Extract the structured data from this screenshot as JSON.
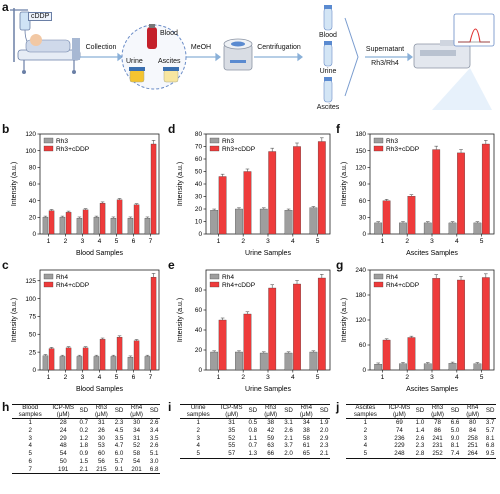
{
  "panel_labels": [
    "a",
    "b",
    "c",
    "d",
    "e",
    "f",
    "g",
    "h",
    "i",
    "j"
  ],
  "workflow": {
    "drug_tag": "cDDP",
    "collection": "Collection",
    "blood": "Blood",
    "urine": "Urine",
    "ascites": "Ascites",
    "meoh": "MeOH",
    "centrifugation": "Centrifugation",
    "tube_blood": "Blood",
    "tube_urine": "Urine",
    "tube_ascites": "Ascites",
    "supernatant": "Supernatant",
    "rh": "Rh3/Rh4"
  },
  "colors": {
    "control": "#9e9e9e",
    "treated": "#ee3b3b",
    "error": "#555555"
  },
  "chart_data": [
    {
      "id": "b",
      "type": "bar",
      "categories": [
        "1",
        "2",
        "3",
        "4",
        "5",
        "6",
        "7"
      ],
      "series": [
        {
          "name": "Rh3",
          "values": [
            20,
            20,
            19,
            20,
            19,
            19,
            19
          ]
        },
        {
          "name": "Rh3+cDDP",
          "values": [
            28,
            26,
            29,
            37,
            41,
            35,
            108
          ]
        }
      ],
      "xlabel": "Blood Samples",
      "ylabel": "Intensity (a.u.)",
      "ylim": [
        0,
        120
      ],
      "yticks": [
        0,
        20,
        40,
        60,
        80,
        100,
        120
      ],
      "legend": "top-left"
    },
    {
      "id": "c",
      "type": "bar",
      "categories": [
        "1",
        "2",
        "3",
        "4",
        "5",
        "6",
        "7"
      ],
      "series": [
        {
          "name": "Rh4",
          "values": [
            20,
            19,
            19,
            19,
            19,
            18,
            19
          ]
        },
        {
          "name": "Rh4+cDDP",
          "values": [
            30,
            31,
            31,
            43,
            46,
            41,
            130
          ]
        }
      ],
      "xlabel": "Blood Samples",
      "ylabel": "Intensity (a.u.)",
      "ylim": [
        0,
        140
      ],
      "yticks": [
        0,
        25,
        50,
        75,
        100,
        125
      ],
      "legend": "top-left"
    },
    {
      "id": "d",
      "type": "bar",
      "categories": [
        "1",
        "2",
        "3",
        "4",
        "5"
      ],
      "series": [
        {
          "name": "Rh3",
          "values": [
            19,
            20,
            20,
            19,
            21
          ]
        },
        {
          "name": "Rh3+cDDP",
          "values": [
            46,
            50,
            66,
            70,
            74
          ]
        }
      ],
      "xlabel": "Urine Samples",
      "ylabel": "Intensity (a.u.)",
      "ylim": [
        0,
        80
      ],
      "yticks": [
        0,
        10,
        20,
        30,
        40,
        50,
        60,
        70,
        80
      ],
      "legend": "top-left"
    },
    {
      "id": "e",
      "type": "bar",
      "categories": [
        "1",
        "2",
        "3",
        "4",
        "5"
      ],
      "series": [
        {
          "name": "Rh4",
          "values": [
            18,
            18,
            17,
            17,
            18
          ]
        },
        {
          "name": "Rh4+cDDP",
          "values": [
            50,
            56,
            82,
            86,
            92
          ]
        }
      ],
      "xlabel": "Urine Samples",
      "ylabel": "Intensity (a.u.)",
      "ylim": [
        0,
        100
      ],
      "yticks": [
        0,
        20,
        40,
        60,
        80
      ],
      "legend": "top-left"
    },
    {
      "id": "f",
      "type": "bar",
      "categories": [
        "1",
        "2",
        "3",
        "4",
        "5"
      ],
      "series": [
        {
          "name": "Rh3",
          "values": [
            20,
            20,
            20,
            20,
            20
          ]
        },
        {
          "name": "Rh3+cDDP",
          "values": [
            60,
            68,
            152,
            146,
            162
          ]
        }
      ],
      "xlabel": "Ascites Samples",
      "ylabel": "Intensity (a.u.)",
      "ylim": [
        0,
        180
      ],
      "yticks": [
        0,
        30,
        60,
        90,
        120,
        150,
        180
      ],
      "legend": "top-left"
    },
    {
      "id": "g",
      "type": "bar",
      "categories": [
        "1",
        "2",
        "3",
        "4",
        "5"
      ],
      "series": [
        {
          "name": "Rh4",
          "values": [
            14,
            15,
            15,
            16,
            15
          ]
        },
        {
          "name": "Rh4+cDDP",
          "values": [
            72,
            78,
            220,
            216,
            222
          ]
        }
      ],
      "xlabel": "Ascites Samples",
      "ylabel": "Intensity (a.u.)",
      "ylim": [
        0,
        240
      ],
      "yticks": [
        0,
        60,
        120,
        180,
        240
      ],
      "legend": "top-left"
    }
  ],
  "tables": {
    "h": {
      "headers": [
        "Blood samples",
        "ICP-MS (μM)",
        "SD",
        "Rh3 (μM)",
        "SD",
        "Rh4 (μM)",
        "SD"
      ],
      "rows": [
        [
          "1",
          "28",
          "0.7",
          "31",
          "2.3",
          "30",
          "2.6"
        ],
        [
          "2",
          "24",
          "0.2",
          "26",
          "4.5",
          "34",
          "3.4"
        ],
        [
          "3",
          "29",
          "1.2",
          "30",
          "3.5",
          "31",
          "3.5"
        ],
        [
          "4",
          "48",
          "1.8",
          "53",
          "4.7",
          "52",
          "2.6"
        ],
        [
          "5",
          "54",
          "0.9",
          "60",
          "6.0",
          "58",
          "5.1"
        ],
        [
          "6",
          "50",
          "1.5",
          "56",
          "5.7",
          "54",
          "3.0"
        ],
        [
          "7",
          "191",
          "2.1",
          "215",
          "9.1",
          "201",
          "6.8"
        ]
      ]
    },
    "i": {
      "headers": [
        "Urine samples",
        "ICP-MS (μM)",
        "SD",
        "Rh3 (μM)",
        "SD",
        "Rh4 (μM)",
        "SD"
      ],
      "rows": [
        [
          "1",
          "31",
          "0.5",
          "38",
          "3.1",
          "34",
          "1.9"
        ],
        [
          "2",
          "35",
          "0.8",
          "42",
          "2.6",
          "38",
          "2.0"
        ],
        [
          "3",
          "52",
          "1.1",
          "59",
          "2.1",
          "58",
          "2.9"
        ],
        [
          "4",
          "55",
          "0.7",
          "63",
          "3.7",
          "61",
          "2.3"
        ],
        [
          "5",
          "57",
          "1.3",
          "66",
          "2.0",
          "65",
          "2.1"
        ]
      ]
    },
    "j": {
      "headers": [
        "Ascites samples",
        "ICP-MS (μM)",
        "SD",
        "Rh3 (μM)",
        "SD",
        "Rh4 (μM)",
        "SD"
      ],
      "rows": [
        [
          "1",
          "69",
          "1.0",
          "78",
          "6.6",
          "80",
          "3.7"
        ],
        [
          "2",
          "74",
          "1.4",
          "86",
          "5.0",
          "84",
          "5.7"
        ],
        [
          "3",
          "236",
          "2.6",
          "241",
          "9.0",
          "258",
          "8.1"
        ],
        [
          "4",
          "229",
          "2.3",
          "231",
          "8.1",
          "251",
          "6.8"
        ],
        [
          "5",
          "248",
          "2.8",
          "252",
          "7.4",
          "264",
          "9.5"
        ]
      ]
    }
  }
}
